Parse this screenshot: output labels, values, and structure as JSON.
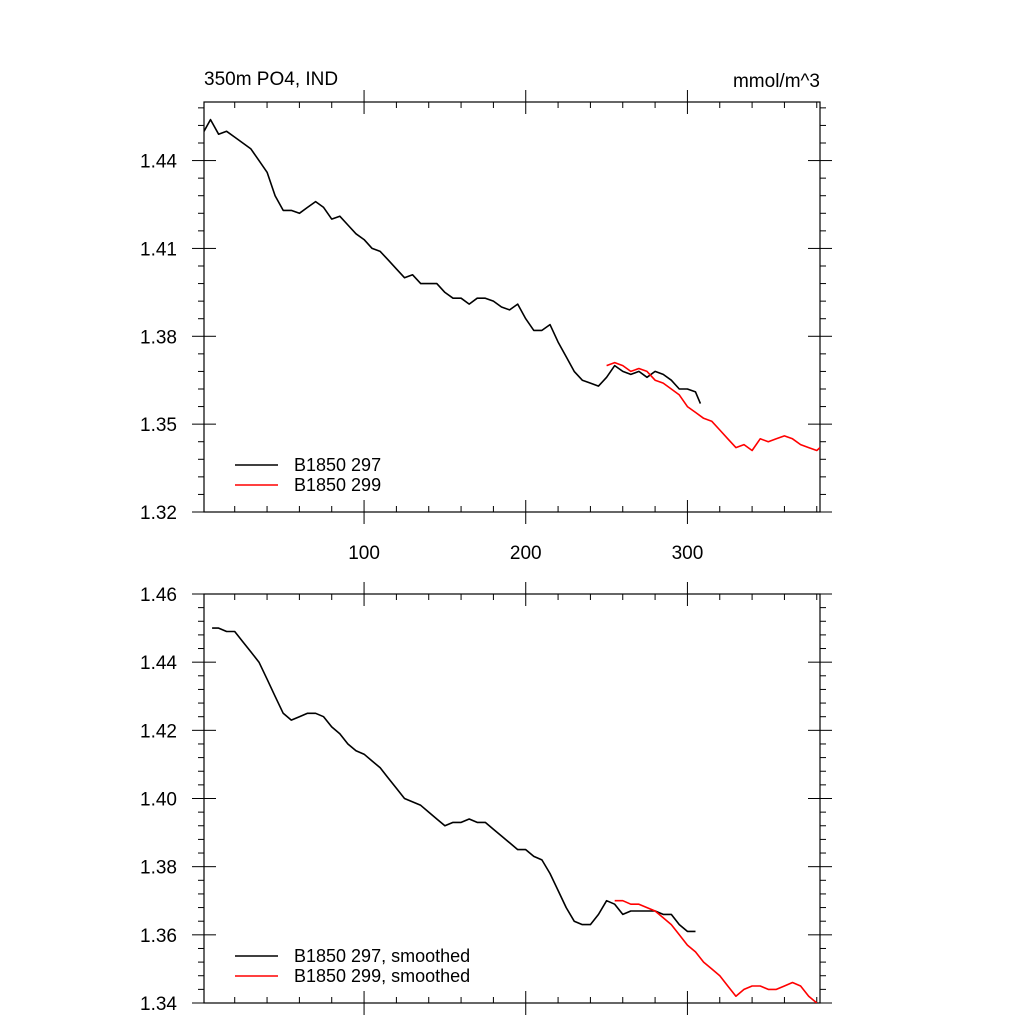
{
  "chart_data": [
    {
      "type": "line",
      "title": "350m PO4, IND",
      "units": "mmol/m^3",
      "xlim": [
        1,
        382
      ],
      "ylim": [
        1.32,
        1.46
      ],
      "x_ticks": [
        100,
        200,
        300
      ],
      "x_tick_labels": [
        "100",
        "200",
        "300"
      ],
      "y_ticks": [
        1.32,
        1.35,
        1.38,
        1.41,
        1.44
      ],
      "y_tick_labels": [
        "1.32",
        "1.35",
        "1.38",
        "1.41",
        "1.44"
      ],
      "legend": "bottom-left",
      "series": [
        {
          "name": "B1850 297",
          "color": "#000000",
          "x": [
            1,
            5,
            10,
            15,
            20,
            25,
            30,
            35,
            40,
            45,
            50,
            55,
            60,
            65,
            70,
            75,
            80,
            85,
            90,
            95,
            100,
            105,
            110,
            115,
            120,
            125,
            130,
            135,
            140,
            145,
            150,
            155,
            160,
            165,
            170,
            175,
            180,
            185,
            190,
            195,
            200,
            205,
            210,
            215,
            220,
            225,
            230,
            235,
            240,
            245,
            250,
            255,
            260,
            265,
            270,
            275,
            280,
            285,
            290,
            295,
            300,
            305,
            308
          ],
          "y": [
            1.45,
            1.454,
            1.449,
            1.45,
            1.448,
            1.446,
            1.444,
            1.44,
            1.436,
            1.428,
            1.423,
            1.423,
            1.422,
            1.424,
            1.426,
            1.424,
            1.42,
            1.421,
            1.418,
            1.415,
            1.413,
            1.41,
            1.409,
            1.406,
            1.403,
            1.4,
            1.401,
            1.398,
            1.398,
            1.398,
            1.395,
            1.393,
            1.393,
            1.391,
            1.393,
            1.393,
            1.392,
            1.39,
            1.389,
            1.391,
            1.386,
            1.382,
            1.382,
            1.384,
            1.378,
            1.373,
            1.368,
            1.365,
            1.364,
            1.363,
            1.366,
            1.37,
            1.368,
            1.367,
            1.368,
            1.366,
            1.368,
            1.367,
            1.365,
            1.362,
            1.362,
            1.361,
            1.357
          ]
        },
        {
          "name": "B1850 299",
          "color": "#ff0000",
          "x": [
            250,
            255,
            260,
            265,
            270,
            275,
            280,
            285,
            290,
            295,
            300,
            305,
            310,
            315,
            320,
            325,
            330,
            335,
            340,
            345,
            350,
            355,
            360,
            365,
            370,
            375,
            380,
            382
          ],
          "y": [
            1.37,
            1.371,
            1.37,
            1.368,
            1.369,
            1.368,
            1.365,
            1.364,
            1.362,
            1.36,
            1.356,
            1.354,
            1.352,
            1.351,
            1.348,
            1.345,
            1.342,
            1.343,
            1.341,
            1.345,
            1.344,
            1.345,
            1.346,
            1.345,
            1.343,
            1.342,
            1.341,
            1.342
          ]
        }
      ]
    },
    {
      "type": "line",
      "xlim": [
        1,
        382
      ],
      "ylim": [
        1.34,
        1.46
      ],
      "x_ticks": [
        100,
        200,
        300
      ],
      "y_ticks": [
        1.34,
        1.36,
        1.38,
        1.4,
        1.42,
        1.44,
        1.46
      ],
      "y_tick_labels": [
        "1.34",
        "1.36",
        "1.38",
        "1.40",
        "1.42",
        "1.44",
        "1.46"
      ],
      "legend": "bottom-left",
      "series": [
        {
          "name": "B1850 297, smoothed",
          "color": "#000000",
          "x": [
            6,
            10,
            15,
            20,
            25,
            30,
            35,
            40,
            45,
            50,
            55,
            60,
            65,
            70,
            75,
            80,
            85,
            90,
            95,
            100,
            105,
            110,
            115,
            120,
            125,
            130,
            135,
            140,
            145,
            150,
            155,
            160,
            165,
            170,
            175,
            180,
            185,
            190,
            195,
            200,
            205,
            210,
            215,
            220,
            225,
            230,
            235,
            240,
            245,
            250,
            255,
            260,
            265,
            270,
            275,
            280,
            285,
            290,
            295,
            300,
            305
          ],
          "y": [
            1.45,
            1.45,
            1.449,
            1.449,
            1.446,
            1.443,
            1.44,
            1.435,
            1.43,
            1.425,
            1.423,
            1.424,
            1.425,
            1.425,
            1.424,
            1.421,
            1.419,
            1.416,
            1.414,
            1.413,
            1.411,
            1.409,
            1.406,
            1.403,
            1.4,
            1.399,
            1.398,
            1.396,
            1.394,
            1.392,
            1.393,
            1.393,
            1.394,
            1.393,
            1.393,
            1.391,
            1.389,
            1.387,
            1.385,
            1.385,
            1.383,
            1.382,
            1.378,
            1.373,
            1.368,
            1.364,
            1.363,
            1.363,
            1.366,
            1.37,
            1.369,
            1.366,
            1.367,
            1.367,
            1.367,
            1.367,
            1.366,
            1.366,
            1.363,
            1.361,
            1.361
          ]
        },
        {
          "name": "B1850 299, smoothed",
          "color": "#ff0000",
          "x": [
            255,
            260,
            265,
            270,
            275,
            280,
            285,
            290,
            295,
            300,
            305,
            310,
            315,
            320,
            325,
            330,
            335,
            340,
            345,
            350,
            355,
            360,
            365,
            370,
            375,
            380
          ],
          "y": [
            1.37,
            1.37,
            1.369,
            1.369,
            1.368,
            1.367,
            1.365,
            1.363,
            1.36,
            1.357,
            1.355,
            1.352,
            1.35,
            1.348,
            1.345,
            1.342,
            1.344,
            1.345,
            1.345,
            1.344,
            1.344,
            1.345,
            1.346,
            1.345,
            1.342,
            1.34
          ]
        }
      ]
    }
  ]
}
